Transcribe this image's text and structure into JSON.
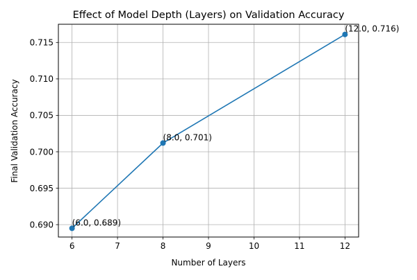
{
  "chart_data": {
    "type": "line",
    "title": "Effect of Model Depth (Layers) on Validation Accuracy",
    "xlabel": "Number of Layers",
    "ylabel": "Final Validation Accuracy",
    "xlim": [
      5.7,
      12.3
    ],
    "ylim": [
      0.6883,
      0.7175
    ],
    "xticks": [
      6,
      7,
      8,
      9,
      10,
      11,
      12
    ],
    "yticks": [
      0.69,
      0.695,
      0.7,
      0.705,
      0.71,
      0.715
    ],
    "grid": true,
    "series": [
      {
        "x": [
          6.0,
          8.0,
          12.0
        ],
        "y": [
          0.6895,
          0.7012,
          0.7161
        ],
        "color": "#1f77b4",
        "marker": "circle"
      }
    ],
    "annotations": [
      "(6.0, 0.689)",
      "(8.0, 0.701)",
      "(12.0, 0.716)"
    ]
  }
}
